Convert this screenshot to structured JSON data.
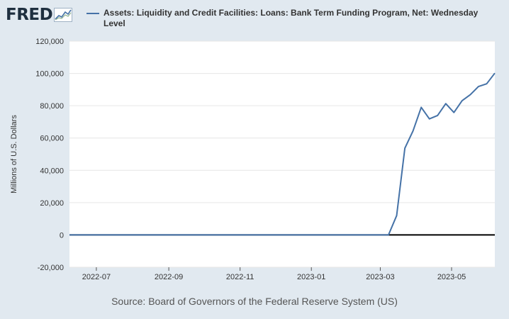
{
  "logo": {
    "text": "FRED",
    "icon": "fred-chart-icon"
  },
  "chart_data": {
    "type": "line",
    "series": [
      {
        "name": "Assets: Liquidity and Credit Facilities: Loans: Bank Term Funding Program, Net: Wednesday Level",
        "color": "#4572a7",
        "points": [
          [
            "2022-06-08",
            0
          ],
          [
            "2023-03-08",
            0
          ],
          [
            "2023-03-15",
            11943
          ],
          [
            "2023-03-22",
            53669
          ],
          [
            "2023-03-29",
            64403
          ],
          [
            "2023-04-05",
            79021
          ],
          [
            "2023-04-12",
            71838
          ],
          [
            "2023-04-19",
            73981
          ],
          [
            "2023-04-26",
            81298
          ],
          [
            "2023-05-03",
            75819
          ],
          [
            "2023-05-10",
            83109
          ],
          [
            "2023-05-17",
            86800
          ],
          [
            "2023-05-24",
            91882
          ],
          [
            "2023-05-31",
            93562
          ],
          [
            "2023-06-07",
            100165
          ]
        ]
      }
    ],
    "xlim": [
      "2022-06-08",
      "2023-06-07"
    ],
    "ylim": [
      -20000,
      120000
    ],
    "yticks": [
      "-20,000",
      "0",
      "20,000",
      "40,000",
      "60,000",
      "80,000",
      "100,000",
      "120,000"
    ],
    "ytick_values": [
      -20000,
      0,
      20000,
      40000,
      60000,
      80000,
      100000,
      120000
    ],
    "xticks": [
      "2022-07",
      "2022-09",
      "2022-11",
      "2023-01",
      "2023-03",
      "2023-05"
    ],
    "xtick_dates": [
      "2022-07-01",
      "2022-09-01",
      "2022-11-01",
      "2023-01-01",
      "2023-03-01",
      "2023-05-01"
    ],
    "ylabel": "Millions of U.S. Dollars",
    "grid": true,
    "legend_position": "top"
  },
  "source": "Source: Board of Governors of the Federal Reserve System (US)"
}
